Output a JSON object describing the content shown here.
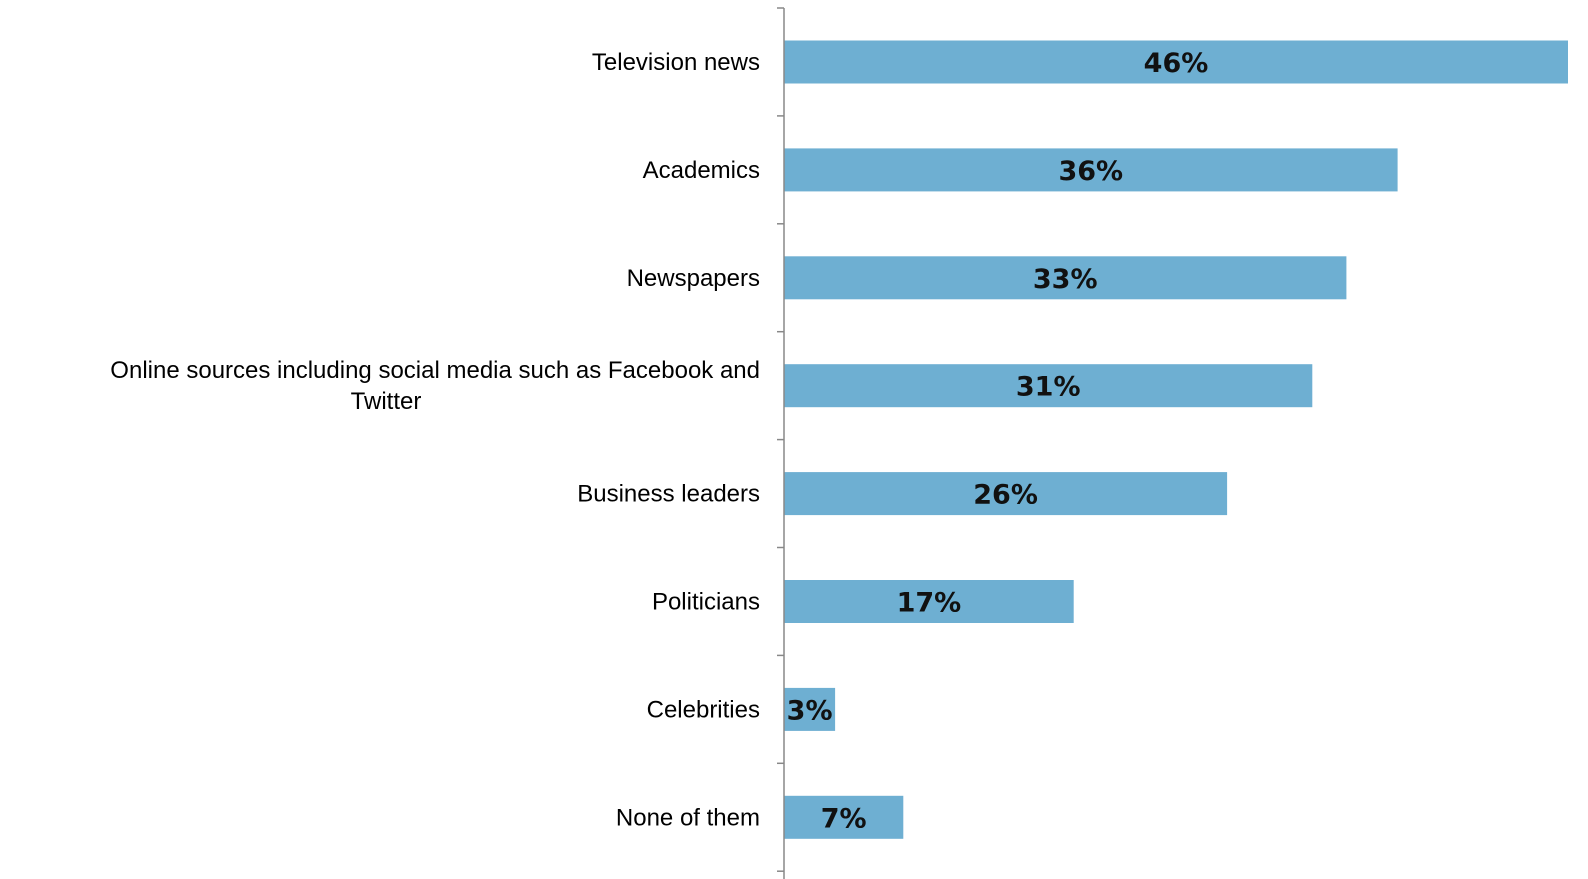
{
  "chart_data": {
    "type": "bar",
    "orientation": "horizontal",
    "title": "",
    "xlabel": "",
    "ylabel": "",
    "xlim": [
      0,
      46
    ],
    "grid": false,
    "legend": "none",
    "bar_color": "#6eafd2",
    "categories": [
      "Television news",
      "Academics",
      "Newspapers",
      "Online sources including social media such as Facebook and Twitter",
      "Business leaders",
      "Politicians",
      "Celebrities",
      "None of them"
    ],
    "category_lines": [
      [
        "Television news"
      ],
      [
        "Academics"
      ],
      [
        "Newspapers"
      ],
      [
        "Online sources including social media such as Facebook and",
        "Twitter"
      ],
      [
        "Business leaders"
      ],
      [
        "Politicians"
      ],
      [
        "Celebrities"
      ],
      [
        "None of them"
      ]
    ],
    "values": [
      46,
      36,
      33,
      31,
      26,
      17,
      3,
      7
    ],
    "value_labels": [
      "46%",
      "36%",
      "33%",
      "31%",
      "26%",
      "17%",
      "3%",
      "7%"
    ]
  }
}
